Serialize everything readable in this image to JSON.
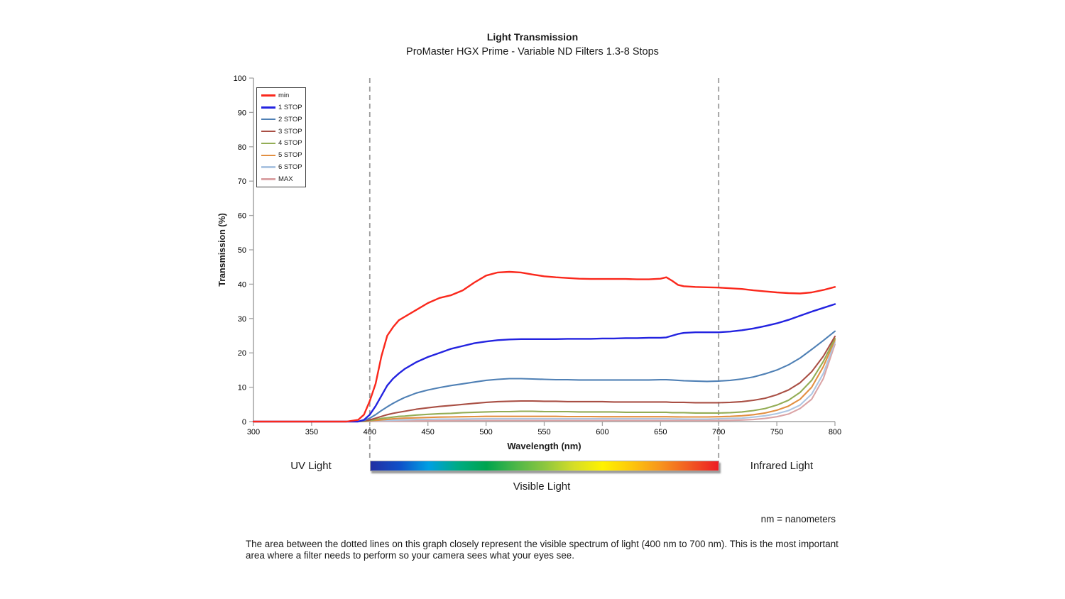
{
  "chart_data": {
    "type": "line",
    "title": "Light Transmission",
    "subtitle": "ProMaster HGX Prime - Variable ND Filters 1.3-8 Stops",
    "xlabel": "Wavelength (nm)",
    "ylabel": "Transmission (%)",
    "xlim": [
      300,
      800
    ],
    "ylim": [
      0,
      100
    ],
    "x_ticks": [
      300,
      350,
      400,
      450,
      500,
      550,
      600,
      650,
      700,
      750,
      800
    ],
    "y_ticks": [
      0,
      10,
      20,
      30,
      40,
      50,
      60,
      70,
      80,
      90,
      100
    ],
    "grid": false,
    "legend_position": "top-left-inside",
    "visible_band_nm": [
      400,
      700
    ],
    "x": [
      300,
      350,
      380,
      390,
      395,
      400,
      405,
      410,
      415,
      420,
      425,
      430,
      440,
      450,
      460,
      470,
      480,
      490,
      500,
      510,
      520,
      530,
      540,
      550,
      560,
      570,
      580,
      590,
      600,
      610,
      620,
      630,
      640,
      650,
      655,
      660,
      665,
      670,
      680,
      690,
      700,
      710,
      720,
      730,
      740,
      750,
      760,
      770,
      780,
      790,
      800
    ],
    "series": [
      {
        "name": "min",
        "color": "#fa281c",
        "width": 2.4,
        "values": [
          0,
          0,
          0,
          0.5,
          2,
          6,
          11,
          19,
          25,
          27.5,
          29.5,
          30.5,
          32.5,
          34.5,
          36,
          36.8,
          38.2,
          40.5,
          42.5,
          43.4,
          43.6,
          43.4,
          42.8,
          42.3,
          42,
          41.8,
          41.6,
          41.5,
          41.5,
          41.5,
          41.5,
          41.4,
          41.4,
          41.6,
          42,
          41,
          39.8,
          39.4,
          39.2,
          39.1,
          39,
          38.8,
          38.6,
          38.2,
          37.9,
          37.6,
          37.4,
          37.3,
          37.6,
          38.3,
          39.2
        ]
      },
      {
        "name": "1 STOP",
        "color": "#2323e0",
        "width": 2.4,
        "values": [
          0,
          0,
          0,
          0,
          0.5,
          2,
          4.5,
          7.5,
          10.5,
          12.5,
          14,
          15.3,
          17.3,
          18.8,
          20,
          21.2,
          22,
          22.8,
          23.3,
          23.7,
          23.9,
          24,
          24,
          24,
          24,
          24.1,
          24.1,
          24.1,
          24.2,
          24.2,
          24.3,
          24.3,
          24.4,
          24.4,
          24.5,
          25,
          25.5,
          25.8,
          26,
          26,
          26,
          26.2,
          26.6,
          27.1,
          27.8,
          28.6,
          29.6,
          30.8,
          32,
          33.1,
          34.2
        ]
      },
      {
        "name": "2 STOP",
        "color": "#4f80b5",
        "width": 2.1,
        "values": [
          0,
          0,
          0,
          0,
          0.3,
          1,
          2,
          3.2,
          4.3,
          5.3,
          6.2,
          7,
          8.3,
          9.2,
          9.9,
          10.5,
          11,
          11.5,
          12,
          12.3,
          12.5,
          12.5,
          12.4,
          12.3,
          12.2,
          12.2,
          12.1,
          12.1,
          12.1,
          12.1,
          12.1,
          12.1,
          12.1,
          12.2,
          12.2,
          12.1,
          12,
          11.9,
          11.8,
          11.7,
          11.8,
          12,
          12.4,
          13,
          13.9,
          15,
          16.5,
          18.5,
          21,
          23.6,
          26.3
        ]
      },
      {
        "name": "3 STOP",
        "color": "#a94f44",
        "width": 2.1,
        "values": [
          0,
          0,
          0,
          0,
          0.2,
          0.5,
          1,
          1.5,
          2,
          2.4,
          2.7,
          3,
          3.6,
          4,
          4.4,
          4.7,
          5,
          5.3,
          5.6,
          5.8,
          5.9,
          6,
          6,
          5.9,
          5.9,
          5.8,
          5.8,
          5.8,
          5.8,
          5.7,
          5.7,
          5.7,
          5.7,
          5.7,
          5.7,
          5.6,
          5.6,
          5.6,
          5.5,
          5.5,
          5.5,
          5.6,
          5.8,
          6.2,
          6.8,
          7.8,
          9.2,
          11.3,
          14.5,
          19,
          24.8
        ]
      },
      {
        "name": "4 STOP",
        "color": "#93ad55",
        "width": 2.1,
        "values": [
          0,
          0,
          0,
          0,
          0.1,
          0.3,
          0.6,
          0.9,
          1.1,
          1.3,
          1.5,
          1.6,
          1.9,
          2.1,
          2.3,
          2.4,
          2.6,
          2.7,
          2.8,
          2.9,
          2.9,
          3,
          3,
          2.9,
          2.9,
          2.9,
          2.8,
          2.8,
          2.8,
          2.8,
          2.7,
          2.7,
          2.7,
          2.7,
          2.7,
          2.6,
          2.6,
          2.6,
          2.5,
          2.5,
          2.5,
          2.6,
          2.8,
          3.2,
          3.8,
          4.8,
          6.2,
          8.5,
          12,
          17.5,
          24.2
        ]
      },
      {
        "name": "5 STOP",
        "color": "#e28f41",
        "width": 2.1,
        "values": [
          0,
          0,
          0,
          0,
          0.05,
          0.2,
          0.35,
          0.5,
          0.65,
          0.8,
          0.9,
          1,
          1.1,
          1.2,
          1.3,
          1.35,
          1.4,
          1.45,
          1.5,
          1.5,
          1.5,
          1.5,
          1.5,
          1.5,
          1.5,
          1.45,
          1.45,
          1.45,
          1.4,
          1.4,
          1.4,
          1.4,
          1.4,
          1.4,
          1.4,
          1.38,
          1.36,
          1.35,
          1.35,
          1.35,
          1.4,
          1.5,
          1.7,
          2,
          2.5,
          3.3,
          4.5,
          6.5,
          10,
          16,
          23.8
        ]
      },
      {
        "name": "6 STOP",
        "color": "#aec6e2",
        "width": 2.1,
        "values": [
          0,
          0,
          0,
          0,
          0,
          0.1,
          0.2,
          0.3,
          0.35,
          0.4,
          0.45,
          0.5,
          0.6,
          0.65,
          0.7,
          0.72,
          0.75,
          0.78,
          0.8,
          0.8,
          0.8,
          0.8,
          0.8,
          0.8,
          0.8,
          0.8,
          0.8,
          0.8,
          0.8,
          0.8,
          0.8,
          0.8,
          0.8,
          0.8,
          0.8,
          0.78,
          0.76,
          0.75,
          0.72,
          0.7,
          0.8,
          0.9,
          1,
          1.3,
          1.7,
          2.3,
          3.2,
          4.8,
          8,
          14,
          23.2
        ]
      },
      {
        "name": "MAX",
        "color": "#dba4a6",
        "width": 2.1,
        "values": [
          0,
          0,
          0,
          0,
          0,
          0.05,
          0.08,
          0.1,
          0.12,
          0.15,
          0.17,
          0.18,
          0.2,
          0.22,
          0.25,
          0.26,
          0.28,
          0.3,
          0.3,
          0.3,
          0.3,
          0.3,
          0.3,
          0.3,
          0.3,
          0.3,
          0.3,
          0.3,
          0.3,
          0.3,
          0.3,
          0.3,
          0.3,
          0.3,
          0.3,
          0.3,
          0.3,
          0.3,
          0.3,
          0.3,
          0.3,
          0.35,
          0.45,
          0.6,
          0.9,
          1.4,
          2.2,
          3.8,
          6.5,
          12.5,
          22.5
        ]
      }
    ]
  },
  "annotations": {
    "uv_light": "UV Light",
    "visible_light": "Visible Light",
    "infrared_light": "Infrared Light",
    "nm_note": "nm = nanometers",
    "footnote": "The area between the dotted lines on this graph closely represent the visible spectrum of light (400 nm to 700 nm). This is the most important area where a filter needs to perform so your camera sees what your eyes see."
  },
  "colors": {
    "axis": "#a3a3a3",
    "tick_text": "#000000",
    "dashed_band_line": "#9b9b9b"
  },
  "spectrum": {
    "gradient": [
      "#232fa2",
      "#1050c8",
      "#009fe3",
      "#00ab84",
      "#00a44e",
      "#4cb648",
      "#8cc63f",
      "#d5dd28",
      "#fff200",
      "#fdc70c",
      "#f7941d",
      "#f15a22",
      "#ed1c24"
    ]
  }
}
